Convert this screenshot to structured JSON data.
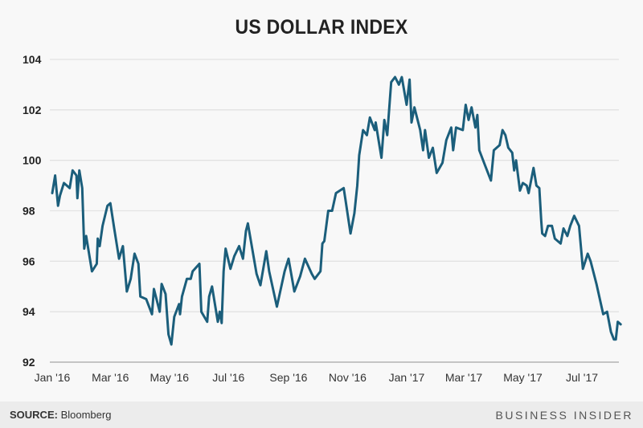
{
  "chart_data": {
    "type": "line",
    "title": "US DOLLAR INDEX",
    "xlabel": "",
    "ylabel": "",
    "ylim": [
      92,
      104
    ],
    "yticks": [
      92,
      94,
      96,
      98,
      100,
      102,
      104
    ],
    "xticks": [
      {
        "date": "2016-01-01",
        "label": "Jan '16"
      },
      {
        "date": "2016-03-01",
        "label": "Mar '16"
      },
      {
        "date": "2016-05-01",
        "label": "May '16"
      },
      {
        "date": "2016-07-01",
        "label": "Jul '16"
      },
      {
        "date": "2016-09-01",
        "label": "Sep '16"
      },
      {
        "date": "2016-11-01",
        "label": "Nov '16"
      },
      {
        "date": "2017-01-01",
        "label": "Jan '17"
      },
      {
        "date": "2017-03-01",
        "label": "Mar '17"
      },
      {
        "date": "2017-05-01",
        "label": "May '17"
      },
      {
        "date": "2017-07-01",
        "label": "Jul '17"
      }
    ],
    "grid": true,
    "line_color": "#1b5e7b",
    "series": [
      {
        "points": [
          [
            "2016-01-01",
            98.7
          ],
          [
            "2016-01-04",
            99.4
          ],
          [
            "2016-01-07",
            98.2
          ],
          [
            "2016-01-09",
            98.6
          ],
          [
            "2016-01-13",
            99.1
          ],
          [
            "2016-01-19",
            98.9
          ],
          [
            "2016-01-22",
            99.6
          ],
          [
            "2016-01-26",
            99.4
          ],
          [
            "2016-01-27",
            98.5
          ],
          [
            "2016-01-29",
            99.6
          ],
          [
            "2016-02-01",
            98.9
          ],
          [
            "2016-02-03",
            96.5
          ],
          [
            "2016-02-05",
            97.0
          ],
          [
            "2016-02-11",
            95.6
          ],
          [
            "2016-02-16",
            95.9
          ],
          [
            "2016-02-17",
            96.9
          ],
          [
            "2016-02-19",
            96.6
          ],
          [
            "2016-02-22",
            97.4
          ],
          [
            "2016-02-27",
            98.2
          ],
          [
            "2016-03-01",
            98.3
          ],
          [
            "2016-03-05",
            97.3
          ],
          [
            "2016-03-10",
            96.1
          ],
          [
            "2016-03-14",
            96.6
          ],
          [
            "2016-03-18",
            94.8
          ],
          [
            "2016-03-22",
            95.3
          ],
          [
            "2016-03-26",
            96.3
          ],
          [
            "2016-03-30",
            95.9
          ],
          [
            "2016-04-01",
            94.6
          ],
          [
            "2016-04-07",
            94.5
          ],
          [
            "2016-04-13",
            93.9
          ],
          [
            "2016-04-15",
            94.9
          ],
          [
            "2016-04-21",
            94.0
          ],
          [
            "2016-04-23",
            95.1
          ],
          [
            "2016-04-27",
            94.7
          ],
          [
            "2016-04-30",
            93.1
          ],
          [
            "2016-05-03",
            92.7
          ],
          [
            "2016-05-06",
            93.8
          ],
          [
            "2016-05-11",
            94.3
          ],
          [
            "2016-05-12",
            93.9
          ],
          [
            "2016-05-14",
            94.6
          ],
          [
            "2016-05-19",
            95.3
          ],
          [
            "2016-05-23",
            95.3
          ],
          [
            "2016-05-25",
            95.6
          ],
          [
            "2016-06-01",
            95.9
          ],
          [
            "2016-06-03",
            94.0
          ],
          [
            "2016-06-09",
            93.6
          ],
          [
            "2016-06-11",
            94.6
          ],
          [
            "2016-06-14",
            95.0
          ],
          [
            "2016-06-20",
            93.6
          ],
          [
            "2016-06-22",
            94.0
          ],
          [
            "2016-06-24",
            93.55
          ],
          [
            "2016-06-26",
            95.6
          ],
          [
            "2016-06-28",
            96.5
          ],
          [
            "2016-07-03",
            95.7
          ],
          [
            "2016-07-07",
            96.2
          ],
          [
            "2016-07-12",
            96.6
          ],
          [
            "2016-07-16",
            96.1
          ],
          [
            "2016-07-19",
            97.2
          ],
          [
            "2016-07-21",
            97.5
          ],
          [
            "2016-07-30",
            95.5
          ],
          [
            "2016-08-03",
            95.05
          ],
          [
            "2016-08-09",
            96.4
          ],
          [
            "2016-08-12",
            95.6
          ],
          [
            "2016-08-20",
            94.2
          ],
          [
            "2016-08-28",
            95.6
          ],
          [
            "2016-09-01",
            96.1
          ],
          [
            "2016-09-07",
            94.8
          ],
          [
            "2016-09-13",
            95.4
          ],
          [
            "2016-09-18",
            96.1
          ],
          [
            "2016-09-25",
            95.5
          ],
          [
            "2016-09-28",
            95.3
          ],
          [
            "2016-10-04",
            95.6
          ],
          [
            "2016-10-06",
            96.7
          ],
          [
            "2016-10-08",
            96.8
          ],
          [
            "2016-10-12",
            98.0
          ],
          [
            "2016-10-16",
            98.0
          ],
          [
            "2016-10-20",
            98.7
          ],
          [
            "2016-10-28",
            98.9
          ],
          [
            "2016-10-30",
            98.4
          ],
          [
            "2016-11-04",
            97.1
          ],
          [
            "2016-11-08",
            97.9
          ],
          [
            "2016-11-11",
            99.0
          ],
          [
            "2016-11-13",
            100.2
          ],
          [
            "2016-11-17",
            101.2
          ],
          [
            "2016-11-21",
            101.0
          ],
          [
            "2016-11-24",
            101.7
          ],
          [
            "2016-11-29",
            101.2
          ],
          [
            "2016-11-30",
            101.5
          ],
          [
            "2016-12-06",
            100.1
          ],
          [
            "2016-12-09",
            101.6
          ],
          [
            "2016-12-12",
            101.0
          ],
          [
            "2016-12-16",
            103.1
          ],
          [
            "2016-12-20",
            103.3
          ],
          [
            "2016-12-24",
            103.0
          ],
          [
            "2016-12-27",
            103.3
          ],
          [
            "2017-01-01",
            102.2
          ],
          [
            "2017-01-04",
            103.2
          ],
          [
            "2017-01-06",
            101.5
          ],
          [
            "2017-01-09",
            102.1
          ],
          [
            "2017-01-15",
            101.2
          ],
          [
            "2017-01-18",
            100.4
          ],
          [
            "2017-01-20",
            101.2
          ],
          [
            "2017-01-24",
            100.1
          ],
          [
            "2017-01-28",
            100.5
          ],
          [
            "2017-02-01",
            99.5
          ],
          [
            "2017-02-07",
            99.9
          ],
          [
            "2017-02-11",
            100.8
          ],
          [
            "2017-02-16",
            101.3
          ],
          [
            "2017-02-18",
            100.4
          ],
          [
            "2017-02-21",
            101.3
          ],
          [
            "2017-02-28",
            101.2
          ],
          [
            "2017-03-03",
            102.2
          ],
          [
            "2017-03-06",
            101.6
          ],
          [
            "2017-03-09",
            102.1
          ],
          [
            "2017-03-13",
            101.3
          ],
          [
            "2017-03-15",
            101.8
          ],
          [
            "2017-03-17",
            100.4
          ],
          [
            "2017-03-23",
            99.8
          ],
          [
            "2017-03-29",
            99.2
          ],
          [
            "2017-04-01",
            100.4
          ],
          [
            "2017-04-07",
            100.6
          ],
          [
            "2017-04-10",
            101.2
          ],
          [
            "2017-04-13",
            101.0
          ],
          [
            "2017-04-16",
            100.5
          ],
          [
            "2017-04-20",
            100.3
          ],
          [
            "2017-04-22",
            99.6
          ],
          [
            "2017-04-24",
            100.0
          ],
          [
            "2017-04-28",
            98.8
          ],
          [
            "2017-05-01",
            99.1
          ],
          [
            "2017-05-05",
            99.0
          ],
          [
            "2017-05-07",
            98.7
          ],
          [
            "2017-05-12",
            99.7
          ],
          [
            "2017-05-15",
            99.0
          ],
          [
            "2017-05-18",
            98.9
          ],
          [
            "2017-05-20",
            97.6
          ],
          [
            "2017-05-21",
            97.1
          ],
          [
            "2017-05-24",
            97.0
          ],
          [
            "2017-05-27",
            97.4
          ],
          [
            "2017-05-31",
            97.4
          ],
          [
            "2017-06-03",
            96.9
          ],
          [
            "2017-06-09",
            96.7
          ],
          [
            "2017-06-12",
            97.3
          ],
          [
            "2017-06-16",
            97.0
          ],
          [
            "2017-06-19",
            97.4
          ],
          [
            "2017-06-23",
            97.8
          ],
          [
            "2017-06-28",
            97.4
          ],
          [
            "2017-07-02",
            95.7
          ],
          [
            "2017-07-07",
            96.3
          ],
          [
            "2017-07-10",
            96.0
          ],
          [
            "2017-07-16",
            95.1
          ],
          [
            "2017-07-23",
            93.9
          ],
          [
            "2017-07-27",
            94.0
          ],
          [
            "2017-07-31",
            93.2
          ],
          [
            "2017-08-03",
            92.9
          ],
          [
            "2017-08-05",
            92.9
          ],
          [
            "2017-08-07",
            93.6
          ],
          [
            "2017-08-10",
            93.5
          ]
        ]
      }
    ]
  },
  "footer": {
    "source_label": "SOURCE:",
    "source_value": "Bloomberg",
    "brand": "BUSINESS INSIDER"
  }
}
